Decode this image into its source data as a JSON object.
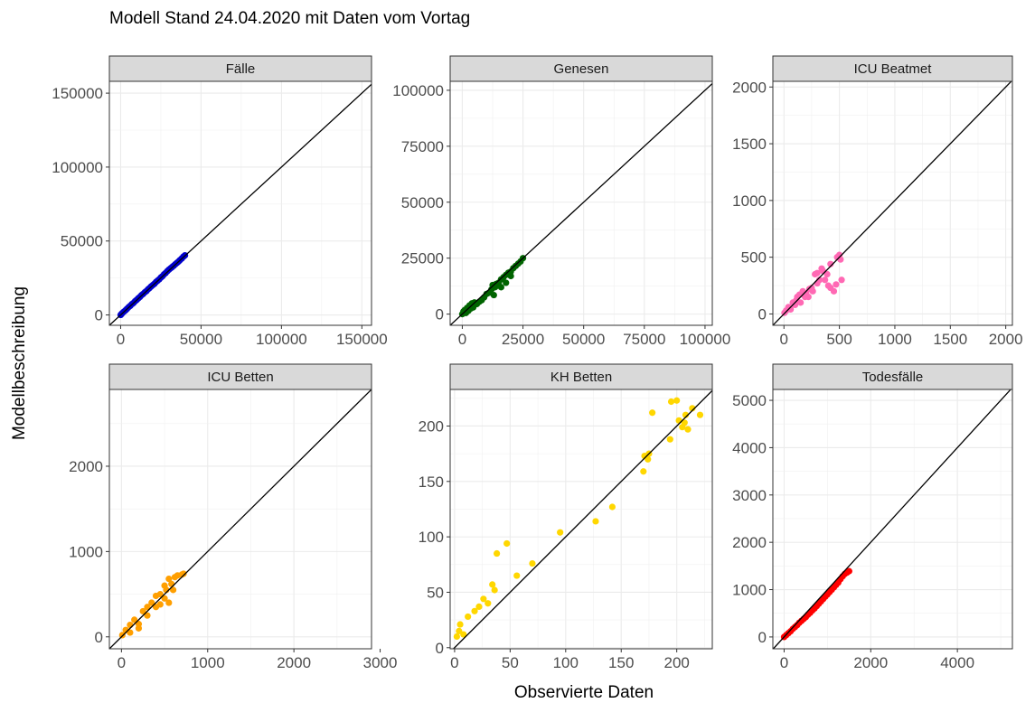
{
  "title": "Modell Stand 24.04.2020 mit Daten vom Vortag",
  "xlabel": "Observierte Daten",
  "ylabel": "Modellbeschreibung",
  "chart_data": {
    "type": "scatter",
    "title": "Modell Stand 24.04.2020 mit Daten vom Vortag",
    "xlabel": "Observierte Daten",
    "ylabel": "Modellbeschreibung",
    "layout": "2x3 facet grid, free scales, identity line y = x in each panel",
    "grid": true,
    "facets": [
      {
        "label": "Fälle",
        "color": "#0000cd",
        "xlim": [
          -7000,
          156000
        ],
        "ylim": [
          -7000,
          158000
        ],
        "xticks": [
          0,
          50000,
          100000,
          150000
        ],
        "xtick_labels": [
          "0",
          "50000",
          "100000",
          "150000"
        ],
        "yticks": [
          0,
          50000,
          100000,
          150000
        ],
        "ytick_labels": [
          "0",
          "50000",
          "100000",
          "150000"
        ],
        "points": [
          [
            0,
            0
          ],
          [
            500,
            600
          ],
          [
            1000,
            1200
          ],
          [
            2000,
            2200
          ],
          [
            3000,
            3100
          ],
          [
            4000,
            4200
          ],
          [
            5000,
            5300
          ],
          [
            6000,
            6200
          ],
          [
            7000,
            7300
          ],
          [
            8000,
            8100
          ],
          [
            9000,
            9300
          ],
          [
            10000,
            10200
          ],
          [
            11000,
            11300
          ],
          [
            12000,
            12200
          ],
          [
            13000,
            13400
          ],
          [
            14000,
            14200
          ],
          [
            15000,
            15300
          ],
          [
            16000,
            16100
          ],
          [
            17000,
            17300
          ],
          [
            18000,
            18200
          ],
          [
            19000,
            19300
          ],
          [
            20000,
            20200
          ],
          [
            21000,
            21100
          ],
          [
            22000,
            22300
          ],
          [
            23000,
            23200
          ],
          [
            24000,
            24100
          ],
          [
            25000,
            25300
          ],
          [
            26000,
            26200
          ],
          [
            27000,
            27500
          ],
          [
            28000,
            28400
          ],
          [
            29000,
            29600
          ],
          [
            30000,
            30600
          ],
          [
            31000,
            31500
          ],
          [
            32000,
            32400
          ],
          [
            33000,
            33300
          ],
          [
            34000,
            34300
          ],
          [
            35000,
            35200
          ],
          [
            36000,
            36100
          ],
          [
            37000,
            37200
          ],
          [
            38000,
            38200
          ],
          [
            39000,
            39400
          ],
          [
            40000,
            40300
          ]
        ]
      },
      {
        "label": "Genesen",
        "color": "#006400",
        "xlim": [
          -5000,
          103000
        ],
        "ylim": [
          -5000,
          104000
        ],
        "xticks": [
          0,
          25000,
          50000,
          75000,
          100000
        ],
        "xtick_labels": [
          "0",
          "25000",
          "50000",
          "75000",
          "100000"
        ],
        "yticks": [
          0,
          25000,
          50000,
          75000,
          100000
        ],
        "ytick_labels": [
          "0",
          "25000",
          "50000",
          "75000",
          "100000"
        ],
        "points": [
          [
            0,
            0
          ],
          [
            500,
            1200
          ],
          [
            1000,
            1800
          ],
          [
            1500,
            500
          ],
          [
            2000,
            2800
          ],
          [
            2500,
            1500
          ],
          [
            3000,
            3900
          ],
          [
            3500,
            2500
          ],
          [
            4000,
            4800
          ],
          [
            4500,
            3000
          ],
          [
            5000,
            5200
          ],
          [
            6000,
            4500
          ],
          [
            7000,
            5500
          ],
          [
            8000,
            6200
          ],
          [
            9000,
            7500
          ],
          [
            10000,
            9000
          ],
          [
            11000,
            9500
          ],
          [
            12000,
            11000
          ],
          [
            12500,
            13000
          ],
          [
            13000,
            8500
          ],
          [
            13500,
            12000
          ],
          [
            14000,
            13500
          ],
          [
            15000,
            14000
          ],
          [
            16000,
            15500
          ],
          [
            17000,
            16500
          ],
          [
            18000,
            17500
          ],
          [
            19000,
            18500
          ],
          [
            20000,
            19000
          ],
          [
            21000,
            20500
          ],
          [
            22000,
            21500
          ],
          [
            23000,
            22500
          ],
          [
            24000,
            23500
          ],
          [
            25000,
            25000
          ],
          [
            18000,
            14000
          ],
          [
            16000,
            12000
          ],
          [
            20000,
            17000
          ]
        ]
      },
      {
        "label": "ICU Beatmet",
        "color": "#ff69b4",
        "xlim": [
          -100,
          2060
        ],
        "ylim": [
          -100,
          2050
        ],
        "xticks": [
          0,
          500,
          1000,
          1500,
          2000
        ],
        "xtick_labels": [
          "0",
          "500",
          "1000",
          "1500",
          "2000"
        ],
        "yticks": [
          0,
          500,
          1000,
          1500,
          2000
        ],
        "ytick_labels": [
          "0",
          "500",
          "1000",
          "1500",
          "2000"
        ],
        "points": [
          [
            5,
            10
          ],
          [
            20,
            30
          ],
          [
            40,
            60
          ],
          [
            60,
            40
          ],
          [
            80,
            100
          ],
          [
            100,
            80
          ],
          [
            120,
            150
          ],
          [
            140,
            170
          ],
          [
            150,
            100
          ],
          [
            170,
            200
          ],
          [
            200,
            180
          ],
          [
            220,
            150
          ],
          [
            250,
            230
          ],
          [
            260,
            200
          ],
          [
            280,
            350
          ],
          [
            300,
            360
          ],
          [
            320,
            300
          ],
          [
            340,
            400
          ],
          [
            350,
            380
          ],
          [
            370,
            300
          ],
          [
            390,
            350
          ],
          [
            400,
            250
          ],
          [
            420,
            230
          ],
          [
            450,
            200
          ],
          [
            470,
            260
          ],
          [
            480,
            500
          ],
          [
            500,
            520
          ],
          [
            510,
            480
          ],
          [
            520,
            300
          ],
          [
            420,
            440
          ],
          [
            300,
            270
          ],
          [
            230,
            220
          ],
          [
            190,
            150
          ],
          [
            110,
            120
          ]
        ]
      },
      {
        "label": "ICU Betten",
        "color": "#ff9f00",
        "xlim": [
          -140,
          2900
        ],
        "ylim": [
          -140,
          2900
        ],
        "xticks": [
          0,
          1000,
          2000,
          3000
        ],
        "xtick_labels": [
          "0",
          "1000",
          "2000",
          "3000"
        ],
        "yticks": [
          0,
          1000,
          2000
        ],
        "ytick_labels": [
          "0",
          "1000",
          "2000"
        ],
        "points": [
          [
            10,
            20
          ],
          [
            50,
            80
          ],
          [
            100,
            140
          ],
          [
            150,
            200
          ],
          [
            200,
            150
          ],
          [
            250,
            300
          ],
          [
            300,
            250
          ],
          [
            350,
            400
          ],
          [
            400,
            350
          ],
          [
            450,
            500
          ],
          [
            500,
            450
          ],
          [
            520,
            550
          ],
          [
            550,
            400
          ],
          [
            580,
            620
          ],
          [
            600,
            550
          ],
          [
            620,
            700
          ],
          [
            650,
            720
          ],
          [
            700,
            730
          ],
          [
            720,
            740
          ],
          [
            300,
            350
          ],
          [
            200,
            100
          ],
          [
            100,
            50
          ],
          [
            450,
            380
          ],
          [
            550,
            680
          ],
          [
            500,
            600
          ],
          [
            400,
            480
          ]
        ]
      },
      {
        "label": "KH Betten",
        "color": "#ffd700",
        "xlim": [
          -4,
          232
        ],
        "ylim": [
          -1,
          233
        ],
        "xticks": [
          0,
          50,
          100,
          150,
          200
        ],
        "xtick_labels": [
          "0",
          "50",
          "100",
          "150",
          "200"
        ],
        "yticks": [
          0,
          50,
          100,
          150,
          200
        ],
        "ytick_labels": [
          "0",
          "50",
          "100",
          "150",
          "200"
        ],
        "points": [
          [
            2,
            10
          ],
          [
            4,
            15
          ],
          [
            5,
            21
          ],
          [
            8,
            12
          ],
          [
            12,
            28
          ],
          [
            18,
            33
          ],
          [
            22,
            37
          ],
          [
            26,
            44
          ],
          [
            30,
            40
          ],
          [
            34,
            57
          ],
          [
            36,
            52
          ],
          [
            38,
            85
          ],
          [
            47,
            94
          ],
          [
            56,
            65
          ],
          [
            70,
            76
          ],
          [
            95,
            104
          ],
          [
            127,
            114
          ],
          [
            142,
            127
          ],
          [
            170,
            159
          ],
          [
            171,
            173
          ],
          [
            174,
            170
          ],
          [
            178,
            212
          ],
          [
            194,
            188
          ],
          [
            195,
            222
          ],
          [
            200,
            223
          ],
          [
            202,
            205
          ],
          [
            205,
            199
          ],
          [
            207,
            203
          ],
          [
            208,
            210
          ],
          [
            210,
            197
          ],
          [
            214,
            216
          ],
          [
            221,
            210
          ],
          [
            175,
            175
          ]
        ]
      },
      {
        "label": "Todesfälle",
        "color": "#ff0000",
        "xlim": [
          -260,
          5270
        ],
        "ylim": [
          -250,
          5230
        ],
        "xticks": [
          0,
          2000,
          4000
        ],
        "xtick_labels": [
          "0",
          "2000",
          "4000"
        ],
        "yticks": [
          0,
          1000,
          2000,
          3000,
          4000,
          5000
        ],
        "ytick_labels": [
          "0",
          "1000",
          "2000",
          "3000",
          "4000",
          "5000"
        ],
        "points": [
          [
            0,
            0
          ],
          [
            50,
            40
          ],
          [
            100,
            80
          ],
          [
            150,
            120
          ],
          [
            200,
            170
          ],
          [
            250,
            210
          ],
          [
            300,
            250
          ],
          [
            350,
            300
          ],
          [
            400,
            340
          ],
          [
            450,
            380
          ],
          [
            500,
            420
          ],
          [
            550,
            470
          ],
          [
            600,
            510
          ],
          [
            650,
            560
          ],
          [
            700,
            600
          ],
          [
            750,
            650
          ],
          [
            800,
            700
          ],
          [
            850,
            750
          ],
          [
            900,
            800
          ],
          [
            950,
            850
          ],
          [
            1000,
            900
          ],
          [
            1050,
            950
          ],
          [
            1100,
            1000
          ],
          [
            1150,
            1050
          ],
          [
            1200,
            1100
          ],
          [
            1250,
            1150
          ],
          [
            1300,
            1220
          ],
          [
            1350,
            1280
          ],
          [
            1400,
            1330
          ],
          [
            1450,
            1360
          ],
          [
            1500,
            1390
          ]
        ]
      }
    ]
  }
}
